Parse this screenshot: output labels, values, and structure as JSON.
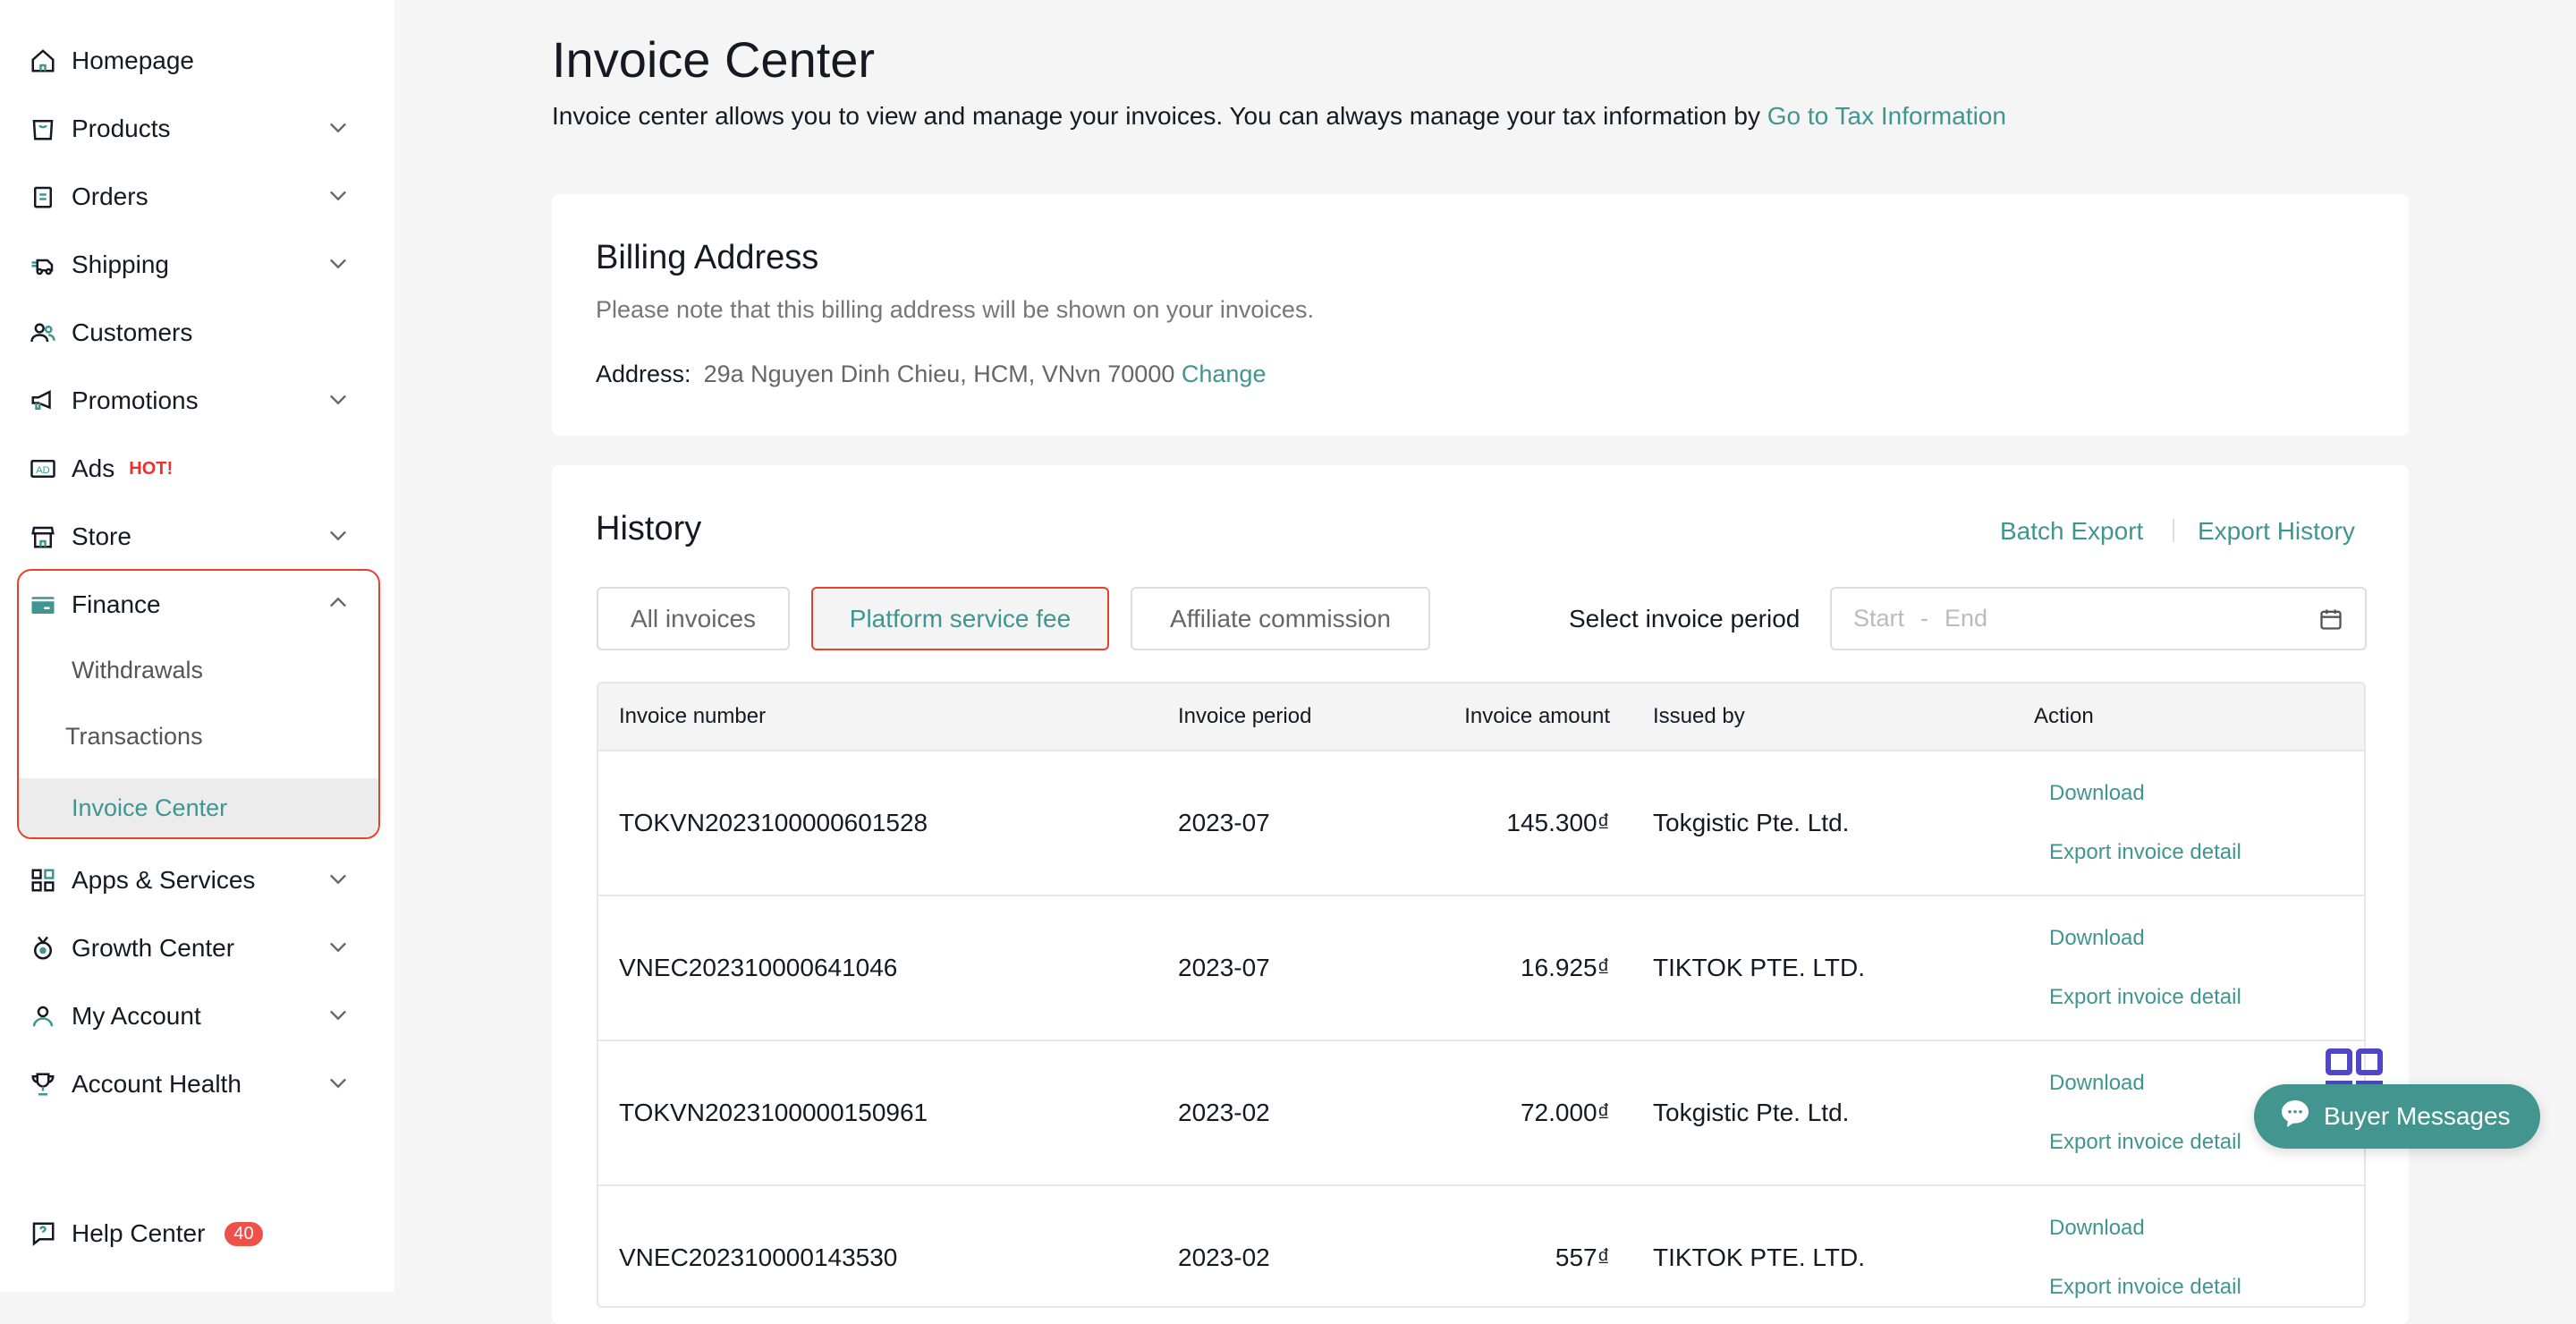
{
  "sidebar": {
    "items": [
      {
        "label": "Homepage",
        "icon": "home-icon",
        "chevron": false
      },
      {
        "label": "Products",
        "icon": "bag-icon",
        "chevron": true
      },
      {
        "label": "Orders",
        "icon": "clipboard-icon",
        "chevron": true
      },
      {
        "label": "Shipping",
        "icon": "truck-icon",
        "chevron": true
      },
      {
        "label": "Customers",
        "icon": "users-icon",
        "chevron": false
      },
      {
        "label": "Promotions",
        "icon": "megaphone-icon",
        "chevron": true
      },
      {
        "label": "Ads",
        "icon": "ad-icon",
        "chevron": false,
        "tag": "HOT!"
      },
      {
        "label": "Store",
        "icon": "store-icon",
        "chevron": true
      },
      {
        "label": "Finance",
        "icon": "card-icon",
        "chevron": "up"
      },
      {
        "label": "Apps & Services",
        "icon": "apps-icon",
        "chevron": true
      },
      {
        "label": "Growth Center",
        "icon": "medal-icon",
        "chevron": true
      },
      {
        "label": "My Account",
        "icon": "user-icon",
        "chevron": true
      },
      {
        "label": "Account Health",
        "icon": "trophy-icon",
        "chevron": true
      }
    ],
    "finance_sub": [
      "Withdrawals",
      "Transactions",
      "Invoice Center"
    ],
    "help": {
      "label": "Help Center",
      "badge": "40"
    }
  },
  "header": {
    "title": "Invoice Center",
    "description": "Invoice center allows you to view and manage your invoices. You can always manage your tax information by ",
    "tax_link": "Go to Tax Information"
  },
  "billing": {
    "title": "Billing Address",
    "note": "Please note that this billing address will be shown on your invoices.",
    "address_label": "Address:",
    "address": "29a Nguyen Dinh Chieu, HCM, VNvn 70000",
    "change": "Change"
  },
  "history": {
    "title": "History",
    "batch_export": "Batch Export",
    "export_history": "Export History",
    "tabs": [
      "All invoices",
      "Platform service fee",
      "Affiliate commission"
    ],
    "active_tab": "Platform service fee",
    "period_label": "Select invoice period",
    "start_placeholder": "Start",
    "end_placeholder": "End",
    "columns": [
      "Invoice number",
      "Invoice period",
      "Invoice amount",
      "Issued by",
      "Action"
    ],
    "rows": [
      {
        "number": "TOKVN2023100000601528",
        "period": "2023-07",
        "amount": "145.300₫",
        "issuer": "Tokgistic Pte. Ltd."
      },
      {
        "number": "VNEC202310000641046",
        "period": "2023-07",
        "amount": "16.925₫",
        "issuer": "TIKTOK PTE. LTD."
      },
      {
        "number": "TOKVN2023100000150961",
        "period": "2023-02",
        "amount": "72.000₫",
        "issuer": "Tokgistic Pte. Ltd."
      },
      {
        "number": "VNEC202310000143530",
        "period": "2023-02",
        "amount": "557₫",
        "issuer": "TIKTOK PTE. LTD."
      }
    ],
    "actions": [
      "Download",
      "Export invoice detail"
    ]
  },
  "buyer_messages": "Buyer Messages",
  "colors": {
    "accent": "#3f9691",
    "highlight": "#e8412b",
    "hot": "#e8322e"
  }
}
